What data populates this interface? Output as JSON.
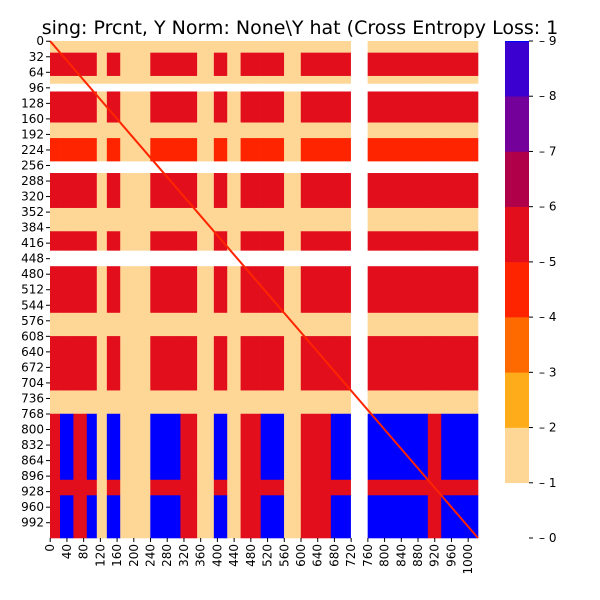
{
  "chart_data": {
    "type": "heatmap",
    "title": "sing: Prcnt, Y Norm: None\\Y hat (Cross Entropy Loss: 1",
    "xlabel": "",
    "ylabel": "",
    "n_rows": 1024,
    "n_cols": 1024,
    "y_tick_labels": [
      "0",
      "32",
      "64",
      "96",
      "128",
      "160",
      "192",
      "224",
      "256",
      "288",
      "320",
      "352",
      "384",
      "416",
      "448",
      "480",
      "512",
      "544",
      "576",
      "608",
      "640",
      "672",
      "704",
      "736",
      "768",
      "800",
      "832",
      "864",
      "896",
      "928",
      "960",
      "992"
    ],
    "x_tick_labels": [
      "0",
      "40",
      "80",
      "120",
      "160",
      "200",
      "240",
      "280",
      "320",
      "360",
      "400",
      "440",
      "480",
      "520",
      "560",
      "600",
      "640",
      "680",
      "720",
      "760",
      "800",
      "840",
      "880",
      "920",
      "960",
      "1000"
    ],
    "diagonal_value": 4,
    "colorbar": {
      "range": [
        0,
        9
      ],
      "tick_labels": [
        "0",
        "1",
        "2",
        "3",
        "4",
        "5",
        "6",
        "7",
        "8",
        "9"
      ],
      "levels": [
        {
          "from": 0,
          "to": 1,
          "color": "#ffffff"
        },
        {
          "from": 1,
          "to": 2,
          "color": "#fed797"
        },
        {
          "from": 2,
          "to": 3,
          "color": "#ffac1b"
        },
        {
          "from": 3,
          "to": 4,
          "color": "#ff6a00"
        },
        {
          "from": 4,
          "to": 5,
          "color": "#ff2400"
        },
        {
          "from": 5,
          "to": 6,
          "color": "#e20e1c"
        },
        {
          "from": 6,
          "to": 7,
          "color": "#b0004a"
        },
        {
          "from": 7,
          "to": 8,
          "color": "#73019a"
        },
        {
          "from": 8,
          "to": 9,
          "color": "#3b00d0"
        },
        {
          "from": 9,
          "to": 9,
          "color": "#0000ff"
        }
      ]
    },
    "row_bands": [
      {
        "start": 0,
        "end": 24,
        "value": 1
      },
      {
        "start": 24,
        "end": 72,
        "value": 5
      },
      {
        "start": 72,
        "end": 88,
        "value": 1
      },
      {
        "start": 88,
        "end": 104,
        "value": 0
      },
      {
        "start": 104,
        "end": 168,
        "value": 5
      },
      {
        "start": 168,
        "end": 200,
        "value": 1
      },
      {
        "start": 200,
        "end": 248,
        "value": 4
      },
      {
        "start": 248,
        "end": 272,
        "value": 0
      },
      {
        "start": 272,
        "end": 344,
        "value": 5
      },
      {
        "start": 344,
        "end": 392,
        "value": 1
      },
      {
        "start": 392,
        "end": 432,
        "value": 5
      },
      {
        "start": 432,
        "end": 464,
        "value": 0
      },
      {
        "start": 464,
        "end": 560,
        "value": 5
      },
      {
        "start": 560,
        "end": 608,
        "value": 1
      },
      {
        "start": 608,
        "end": 720,
        "value": 5
      },
      {
        "start": 720,
        "end": 768,
        "value": 1
      },
      {
        "start": 768,
        "end": 904,
        "value": 9
      },
      {
        "start": 904,
        "end": 936,
        "value": 5
      },
      {
        "start": 936,
        "end": 1024,
        "value": 9
      }
    ],
    "col_bands": [
      {
        "start": 0,
        "end": 24,
        "value": 5
      },
      {
        "start": 24,
        "end": 56,
        "value": 9
      },
      {
        "start": 56,
        "end": 88,
        "value": 5
      },
      {
        "start": 88,
        "end": 112,
        "value": 9
      },
      {
        "start": 112,
        "end": 136,
        "value": 1
      },
      {
        "start": 136,
        "end": 168,
        "value": 9
      },
      {
        "start": 168,
        "end": 240,
        "value": 1
      },
      {
        "start": 240,
        "end": 312,
        "value": 9
      },
      {
        "start": 312,
        "end": 352,
        "value": 5
      },
      {
        "start": 352,
        "end": 392,
        "value": 1
      },
      {
        "start": 392,
        "end": 424,
        "value": 9
      },
      {
        "start": 424,
        "end": 456,
        "value": 1
      },
      {
        "start": 456,
        "end": 504,
        "value": 5
      },
      {
        "start": 504,
        "end": 560,
        "value": 9
      },
      {
        "start": 560,
        "end": 600,
        "value": 1
      },
      {
        "start": 600,
        "end": 672,
        "value": 5
      },
      {
        "start": 672,
        "end": 720,
        "value": 9
      },
      {
        "start": 720,
        "end": 760,
        "value": 0
      },
      {
        "start": 760,
        "end": 904,
        "value": 9
      },
      {
        "start": 904,
        "end": 936,
        "value": 5
      },
      {
        "start": 936,
        "end": 1024,
        "value": 9
      }
    ]
  }
}
